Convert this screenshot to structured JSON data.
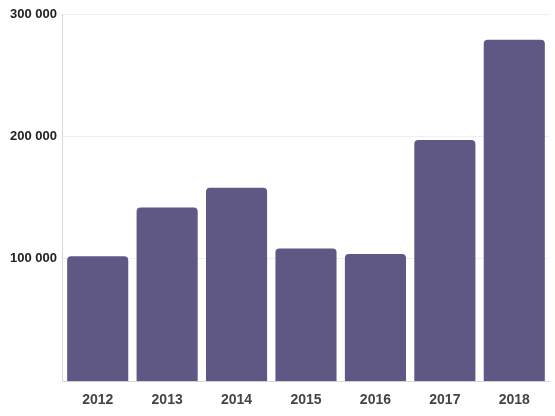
{
  "chart_data": {
    "type": "bar",
    "categories": [
      "2012",
      "2013",
      "2014",
      "2015",
      "2016",
      "2017",
      "2018"
    ],
    "values": [
      102000,
      142000,
      158000,
      108500,
      104000,
      197000,
      279000
    ],
    "color": "#5f5784",
    "ylim": [
      0,
      300000
    ],
    "yticks": [
      {
        "value": 100000,
        "label": "100 000"
      },
      {
        "value": 200000,
        "label": "200 000"
      },
      {
        "value": 300000,
        "label": "300 000"
      }
    ],
    "grid": true
  }
}
